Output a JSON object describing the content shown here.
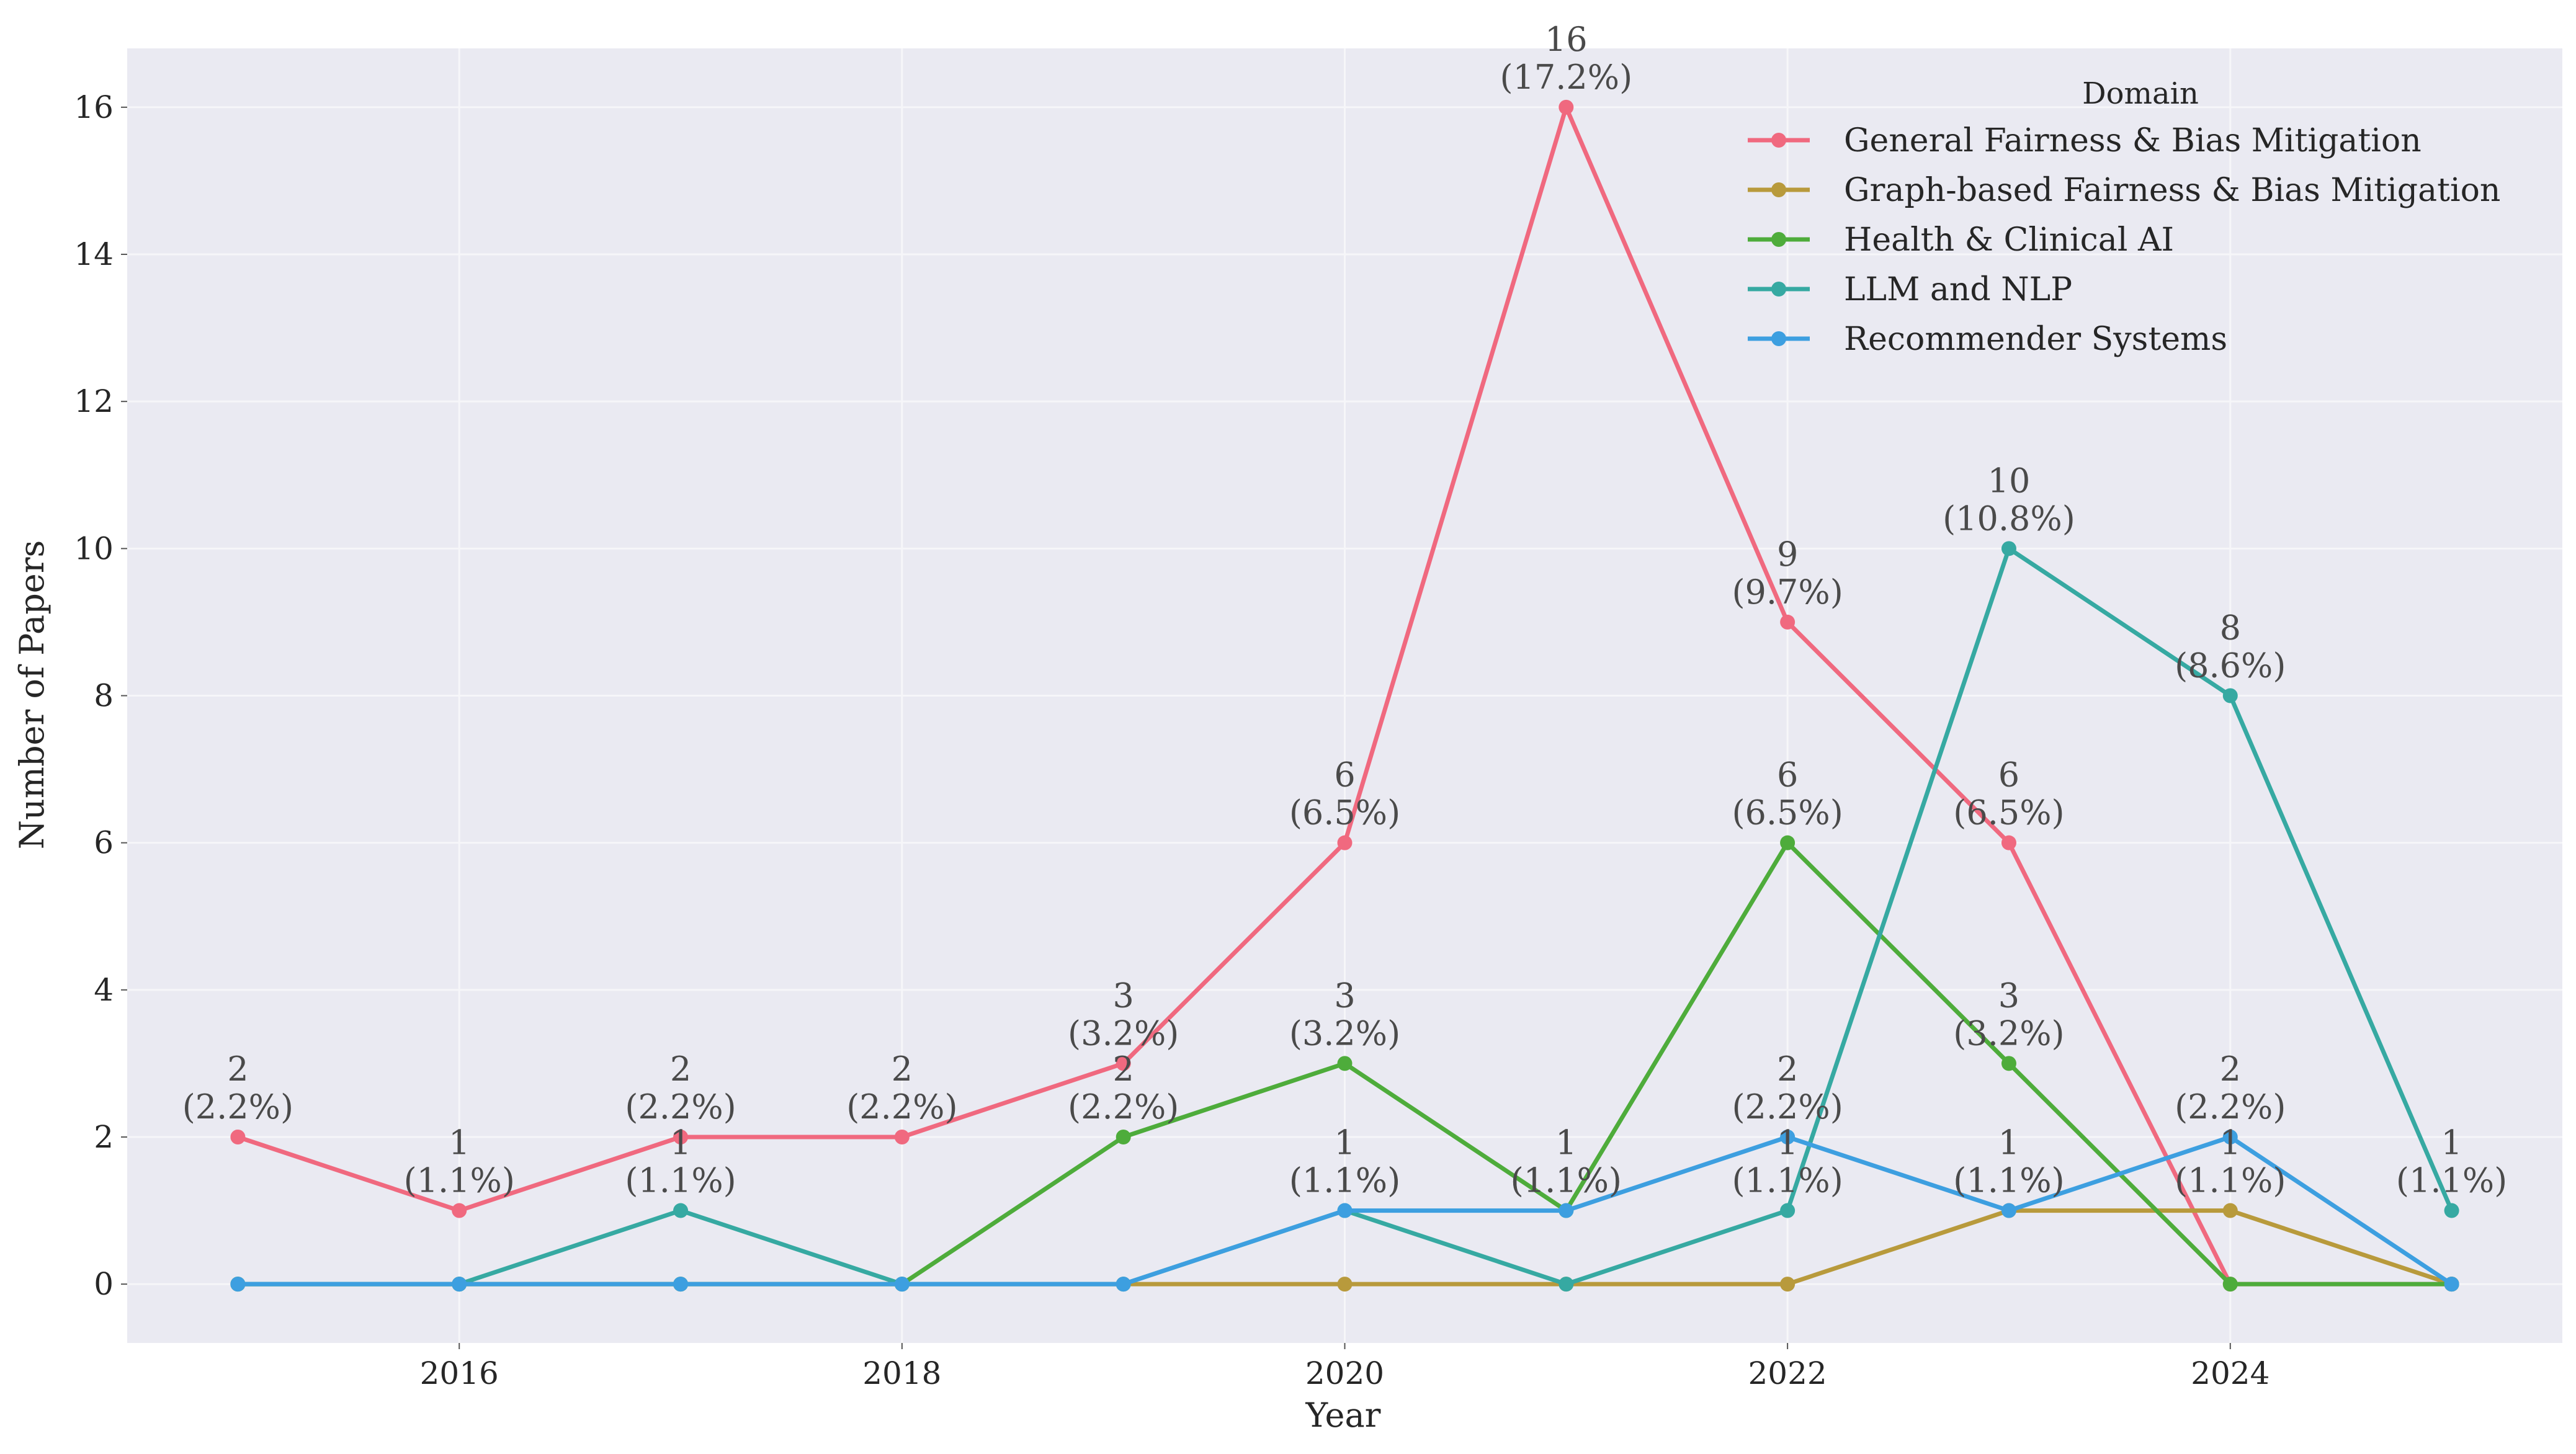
{
  "chart_data": {
    "type": "line",
    "xlabel": "Year",
    "ylabel": "Number of Papers",
    "legend_title": "Domain",
    "legend_position": "top-right",
    "grid": true,
    "xlim": [
      2014.5,
      2025.5
    ],
    "ylim": [
      -0.8,
      16.8
    ],
    "x_ticks": [
      2016,
      2018,
      2020,
      2022,
      2024
    ],
    "y_ticks": [
      0,
      2,
      4,
      6,
      8,
      10,
      12,
      14,
      16
    ],
    "x": [
      2015,
      2016,
      2017,
      2018,
      2019,
      2020,
      2021,
      2022,
      2023,
      2024,
      2025
    ],
    "series": [
      {
        "name": "General Fairness & Bias Mitigation",
        "color": "#f0697f",
        "values": [
          2,
          1,
          2,
          2,
          3,
          6,
          16,
          9,
          6,
          0,
          0
        ]
      },
      {
        "name": "Graph-based Fairness & Bias Mitigation",
        "color": "#b89a3c",
        "values": [
          0,
          0,
          0,
          0,
          0,
          0,
          0,
          0,
          1,
          1,
          0
        ]
      },
      {
        "name": "Health & Clinical AI",
        "color": "#4eac3b",
        "values": [
          0,
          0,
          0,
          0,
          2,
          3,
          1,
          6,
          3,
          0,
          0
        ]
      },
      {
        "name": "LLM and NLP",
        "color": "#36a9a2",
        "values": [
          0,
          0,
          1,
          0,
          0,
          1,
          0,
          1,
          10,
          8,
          1
        ]
      },
      {
        "name": "Recommender Systems",
        "color": "#3d9fe0",
        "values": [
          0,
          0,
          0,
          0,
          0,
          1,
          1,
          2,
          1,
          2,
          0
        ]
      }
    ],
    "annotations": [
      {
        "x": 2015,
        "y": 2,
        "count": "2",
        "pct": "(2.2%)"
      },
      {
        "x": 2016,
        "y": 1,
        "count": "1",
        "pct": "(1.1%)"
      },
      {
        "x": 2017,
        "y": 2,
        "count": "2",
        "pct": "(2.2%)"
      },
      {
        "x": 2017,
        "y": 1,
        "count": "1",
        "pct": "(1.1%)"
      },
      {
        "x": 2018,
        "y": 2,
        "count": "2",
        "pct": "(2.2%)"
      },
      {
        "x": 2019,
        "y": 3,
        "count": "3",
        "pct": "(3.2%)"
      },
      {
        "x": 2019,
        "y": 2,
        "count": "2",
        "pct": "(2.2%)"
      },
      {
        "x": 2020,
        "y": 6,
        "count": "6",
        "pct": "(6.5%)"
      },
      {
        "x": 2020,
        "y": 3,
        "count": "3",
        "pct": "(3.2%)"
      },
      {
        "x": 2020,
        "y": 1,
        "count": "1",
        "pct": "(1.1%)"
      },
      {
        "x": 2020,
        "y": 1,
        "count": "1",
        "pct": "(1.1%)"
      },
      {
        "x": 2021,
        "y": 16,
        "count": "16",
        "pct": "(17.2%)"
      },
      {
        "x": 2021,
        "y": 1,
        "count": "1",
        "pct": "(1.1%)"
      },
      {
        "x": 2021,
        "y": 1,
        "count": "1",
        "pct": "(1.1%)"
      },
      {
        "x": 2022,
        "y": 9,
        "count": "9",
        "pct": "(9.7%)"
      },
      {
        "x": 2022,
        "y": 6,
        "count": "6",
        "pct": "(6.5%)"
      },
      {
        "x": 2022,
        "y": 2,
        "count": "2",
        "pct": "(2.2%)"
      },
      {
        "x": 2022,
        "y": 1,
        "count": "1",
        "pct": "(1.1%)"
      },
      {
        "x": 2023,
        "y": 10,
        "count": "10",
        "pct": "(10.8%)"
      },
      {
        "x": 2023,
        "y": 6,
        "count": "6",
        "pct": "(6.5%)"
      },
      {
        "x": 2023,
        "y": 3,
        "count": "3",
        "pct": "(3.2%)"
      },
      {
        "x": 2023,
        "y": 1,
        "count": "1",
        "pct": "(1.1%)"
      },
      {
        "x": 2023,
        "y": 1,
        "count": "1",
        "pct": "(1.1%)"
      },
      {
        "x": 2024,
        "y": 8,
        "count": "8",
        "pct": "(8.6%)"
      },
      {
        "x": 2024,
        "y": 2,
        "count": "2",
        "pct": "(2.2%)"
      },
      {
        "x": 2024,
        "y": 1,
        "count": "1",
        "pct": "(1.1%)"
      },
      {
        "x": 2025,
        "y": 1,
        "count": "1",
        "pct": "(1.1%)"
      }
    ]
  }
}
